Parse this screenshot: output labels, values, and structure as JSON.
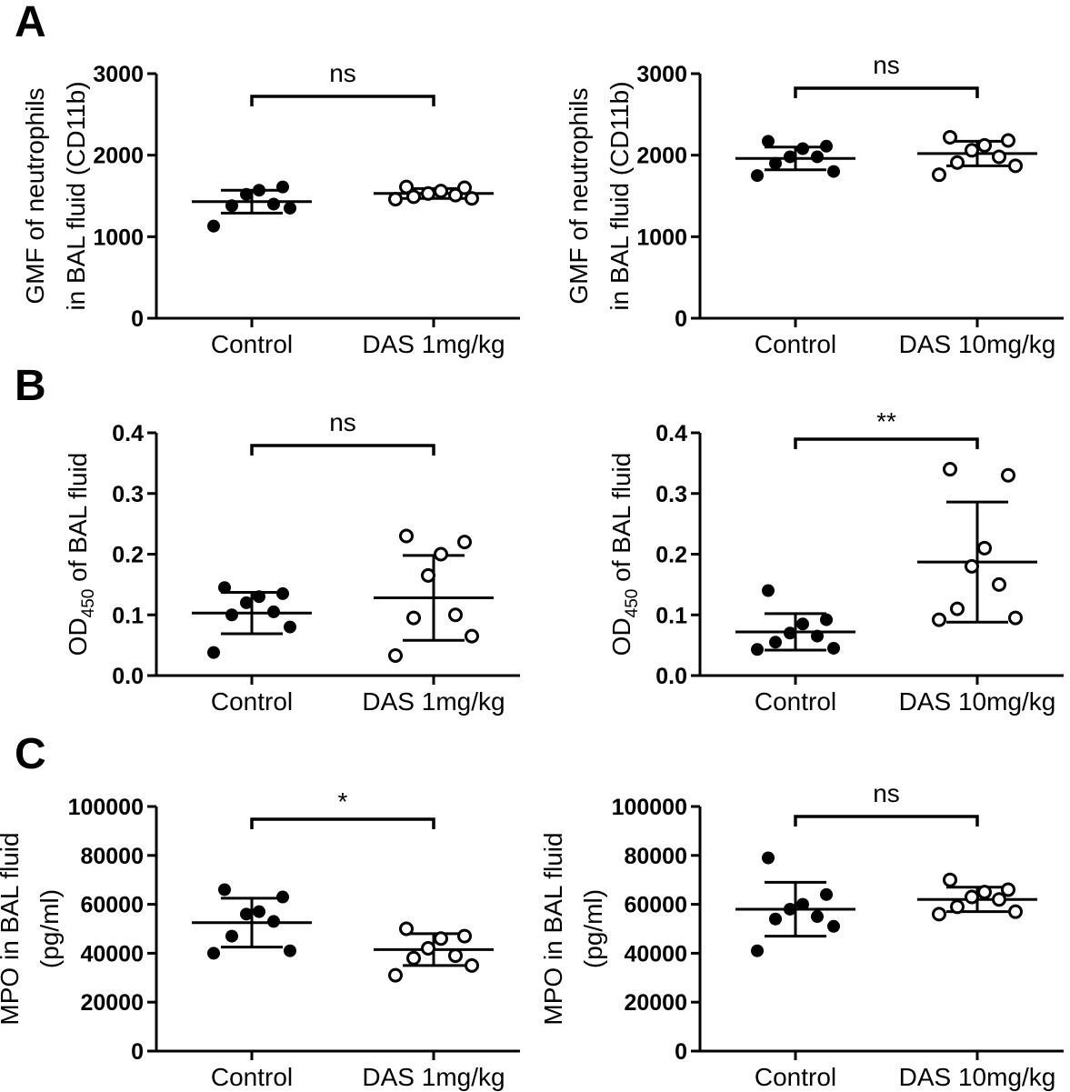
{
  "panel_labels": [
    "A",
    "B",
    "C"
  ],
  "chart_data": [
    {
      "type": "scatter",
      "panel": "A",
      "categories": [
        "Control",
        "DAS 1mg/kg"
      ],
      "ylabel_lines": [
        "GMF of neutrophils",
        "in BAL fluid (CD11b)"
      ],
      "ylim": [
        0,
        3000
      ],
      "yticks": [
        0,
        1000,
        2000,
        3000
      ],
      "grid": false,
      "significance": "ns",
      "series": [
        {
          "values": [
            1130,
            1350,
            1380,
            1400,
            1520,
            1570,
            1610
          ],
          "mean": 1430,
          "sd": 140,
          "fill": "filled"
        },
        {
          "values": [
            1460,
            1470,
            1490,
            1510,
            1530,
            1560,
            1600,
            1610
          ],
          "mean": 1530,
          "sd": 60,
          "fill": "open"
        }
      ]
    },
    {
      "type": "scatter",
      "panel": "A",
      "categories": [
        "Control",
        "DAS 10mg/kg"
      ],
      "ylabel_lines": [
        "GMF of neutrophils",
        "in BAL fluid (CD11b)"
      ],
      "ylim": [
        0,
        3000
      ],
      "yticks": [
        0,
        1000,
        2000,
        3000
      ],
      "grid": false,
      "significance": "ns",
      "series": [
        {
          "values": [
            1750,
            1800,
            1900,
            1980,
            1980,
            2080,
            2110,
            2170
          ],
          "mean": 1960,
          "sd": 140,
          "fill": "filled"
        },
        {
          "values": [
            1760,
            1870,
            1910,
            1980,
            2060,
            2120,
            2180,
            2220
          ],
          "mean": 2020,
          "sd": 150,
          "fill": "open"
        }
      ]
    },
    {
      "type": "scatter",
      "panel": "B",
      "categories": [
        "Control",
        "DAS 1mg/kg"
      ],
      "ylabel_main": "OD",
      "ylabel_sub": "450",
      "ylabel_rest": " of BAL fluid",
      "ylim": [
        0,
        0.4
      ],
      "yticks": [
        "0.0",
        "0.1",
        "0.2",
        "0.3",
        "0.4"
      ],
      "grid": false,
      "significance": "ns",
      "series": [
        {
          "values": [
            0.038,
            0.08,
            0.1,
            0.105,
            0.12,
            0.13,
            0.135,
            0.145
          ],
          "mean": 0.103,
          "sd": 0.034,
          "fill": "filled"
        },
        {
          "values": [
            0.033,
            0.065,
            0.095,
            0.1,
            0.165,
            0.2,
            0.22,
            0.23
          ],
          "mean": 0.128,
          "sd": 0.07,
          "fill": "open"
        }
      ]
    },
    {
      "type": "scatter",
      "panel": "B",
      "categories": [
        "Control",
        "DAS 10mg/kg"
      ],
      "ylabel_main": "OD",
      "ylabel_sub": "450",
      "ylabel_rest": " of BAL fluid",
      "ylim": [
        0,
        0.4
      ],
      "yticks": [
        "0.0",
        "0.1",
        "0.2",
        "0.3",
        "0.4"
      ],
      "grid": false,
      "significance": "**",
      "series": [
        {
          "values": [
            0.043,
            0.045,
            0.055,
            0.065,
            0.07,
            0.085,
            0.092,
            0.14
          ],
          "mean": 0.072,
          "sd": 0.03,
          "fill": "filled"
        },
        {
          "values": [
            0.092,
            0.095,
            0.11,
            0.15,
            0.18,
            0.21,
            0.33,
            0.34
          ],
          "mean": 0.187,
          "sd": 0.099,
          "fill": "open"
        }
      ]
    },
    {
      "type": "scatter",
      "panel": "C",
      "categories": [
        "Control",
        "DAS 1mg/kg"
      ],
      "ylabel_lines": [
        "MPO in BAL fluid",
        "(pg/ml)"
      ],
      "ylim": [
        0,
        100000
      ],
      "yticks": [
        0,
        20000,
        40000,
        60000,
        80000,
        100000
      ],
      "grid": false,
      "significance": "*",
      "series": [
        {
          "values": [
            40000,
            41000,
            47000,
            53000,
            56000,
            57000,
            63000,
            66000
          ],
          "mean": 52500,
          "sd": 10000,
          "fill": "filled"
        },
        {
          "values": [
            31000,
            35000,
            38000,
            39000,
            42000,
            46000,
            47000,
            50000
          ],
          "mean": 41500,
          "sd": 6500,
          "fill": "open"
        }
      ]
    },
    {
      "type": "scatter",
      "panel": "C",
      "categories": [
        "Control",
        "DAS 10mg/kg"
      ],
      "ylabel_lines": [
        "MPO in BAL fluid",
        "(pg/ml)"
      ],
      "ylim": [
        0,
        100000
      ],
      "yticks": [
        0,
        20000,
        40000,
        60000,
        80000,
        100000
      ],
      "grid": false,
      "significance": "ns",
      "series": [
        {
          "values": [
            41000,
            51000,
            54000,
            55000,
            58000,
            60000,
            64000,
            79000
          ],
          "mean": 58000,
          "sd": 11000,
          "fill": "filled"
        },
        {
          "values": [
            56000,
            57000,
            59000,
            62000,
            63000,
            65000,
            66000,
            70000
          ],
          "mean": 62000,
          "sd": 5000,
          "fill": "open"
        }
      ]
    }
  ]
}
